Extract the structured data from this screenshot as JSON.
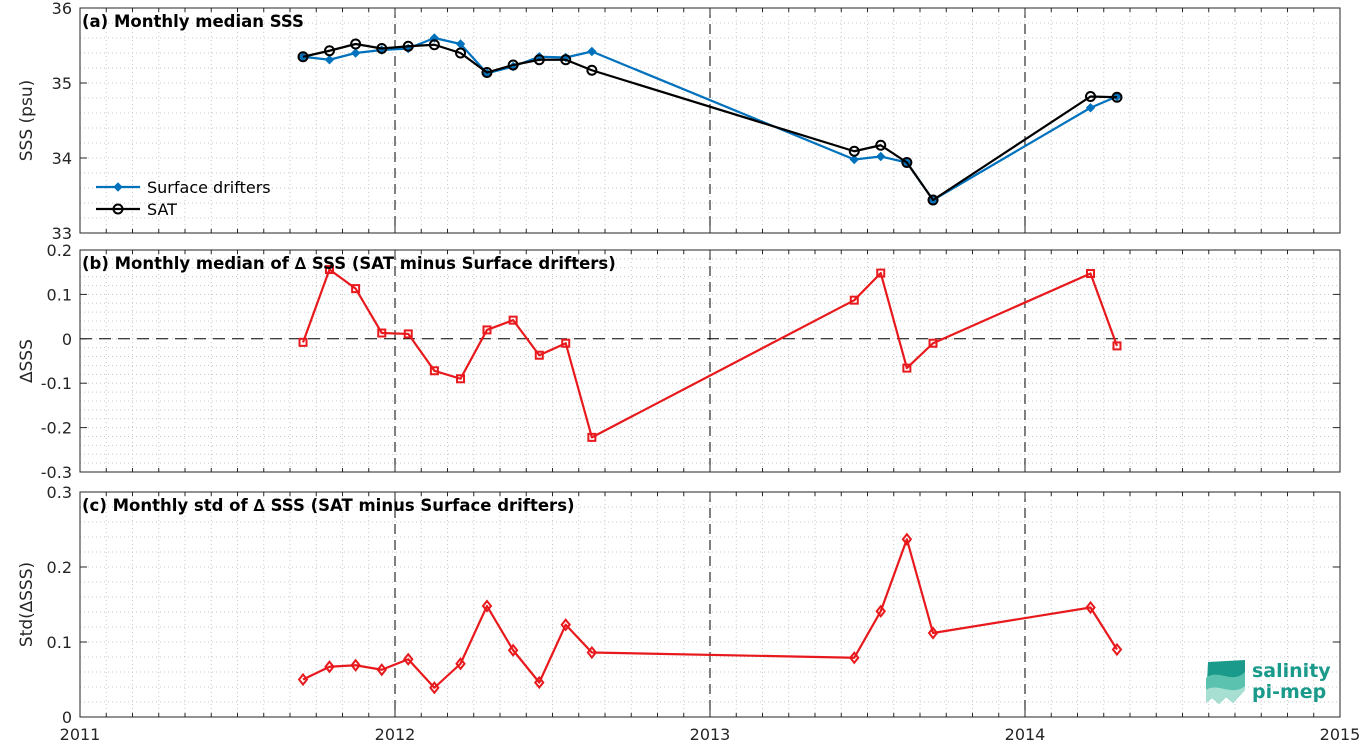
{
  "chart_data": [
    {
      "type": "line",
      "title": "(a) Monthly median SSS",
      "ylabel": "SSS (psu)",
      "xlim": [
        2011,
        2015
      ],
      "ylim": [
        33,
        36
      ],
      "yticks": [
        "33",
        "34",
        "35",
        "36"
      ],
      "xticks": [
        "2011",
        "2012",
        "2013",
        "2014",
        "2015"
      ],
      "grid": "minor dotted",
      "legend_placement": "lower-left",
      "series": [
        {
          "name": "Surface drifters",
          "color": "#0072bd",
          "marker": "diamond",
          "x": [
            2011.708,
            2011.792,
            2011.875,
            2011.958,
            2012.042,
            2012.125,
            2012.208,
            2012.292,
            2012.375,
            2012.458,
            2012.542,
            2012.625,
            2013.458,
            2013.542,
            2013.625,
            2013.708,
            2014.208,
            2014.292
          ],
          "y": [
            35.35,
            35.31,
            35.4,
            35.44,
            35.46,
            35.6,
            35.52,
            35.13,
            35.22,
            35.35,
            35.34,
            35.42,
            33.98,
            34.02,
            33.94,
            33.44,
            34.67,
            34.82
          ]
        },
        {
          "name": "SAT",
          "color": "#000000",
          "marker": "circle",
          "x": [
            2011.708,
            2011.792,
            2011.875,
            2011.958,
            2012.042,
            2012.125,
            2012.208,
            2012.292,
            2012.375,
            2012.458,
            2012.542,
            2012.625,
            2013.458,
            2013.542,
            2013.625,
            2013.708,
            2014.208,
            2014.292
          ],
          "y": [
            35.35,
            35.43,
            35.52,
            35.46,
            35.49,
            35.51,
            35.4,
            35.14,
            35.24,
            35.31,
            35.31,
            35.17,
            34.09,
            34.17,
            33.94,
            33.44,
            34.82,
            34.81
          ]
        }
      ]
    },
    {
      "type": "line",
      "title": "(b) Monthly median of ∆ SSS (SAT minus Surface drifters)",
      "ylabel": "∆SSS",
      "xlim": [
        2011,
        2015
      ],
      "ylim": [
        -0.3,
        0.2
      ],
      "yticks": [
        "-0.3",
        "-0.2",
        "-0.1",
        "0",
        "0.1",
        "0.2"
      ],
      "xticks": [
        "2011",
        "2012",
        "2013",
        "2014",
        "2015"
      ],
      "zero_line": "dashed",
      "series": [
        {
          "color": "#e8191c",
          "marker": "square",
          "x": [
            2011.708,
            2011.792,
            2011.875,
            2011.958,
            2012.042,
            2012.125,
            2012.208,
            2012.292,
            2012.375,
            2012.458,
            2012.542,
            2012.625,
            2013.458,
            2013.542,
            2013.625,
            2013.708,
            2014.208,
            2014.292
          ],
          "y": [
            -0.008,
            0.156,
            0.113,
            0.013,
            0.011,
            -0.072,
            -0.09,
            0.02,
            0.042,
            -0.037,
            -0.01,
            -0.222,
            0.087,
            0.148,
            -0.066,
            -0.01,
            0.147,
            -0.016
          ]
        }
      ]
    },
    {
      "type": "line",
      "title": "(c) Monthly std of ∆ SSS (SAT minus Surface drifters)",
      "ylabel": "Std(∆SSS)",
      "xlim": [
        2011,
        2015
      ],
      "ylim": [
        0,
        0.3
      ],
      "yticks": [
        "0",
        "0.1",
        "0.2",
        "0.3"
      ],
      "xticks": [
        "2011",
        "2012",
        "2013",
        "2014",
        "2015"
      ],
      "series": [
        {
          "color": "#e8191c",
          "marker": "diamond-open",
          "x": [
            2011.708,
            2011.792,
            2011.875,
            2011.958,
            2012.042,
            2012.125,
            2012.208,
            2012.292,
            2012.375,
            2012.458,
            2012.542,
            2012.625,
            2013.458,
            2013.542,
            2013.625,
            2013.708,
            2014.208,
            2014.292
          ],
          "y": [
            0.05,
            0.067,
            0.069,
            0.063,
            0.077,
            0.039,
            0.071,
            0.148,
            0.089,
            0.046,
            0.123,
            0.086,
            0.079,
            0.141,
            0.237,
            0.112,
            0.146,
            0.09
          ]
        }
      ]
    }
  ],
  "logo": {
    "line1": "salinity",
    "line2": "pi-mep"
  }
}
